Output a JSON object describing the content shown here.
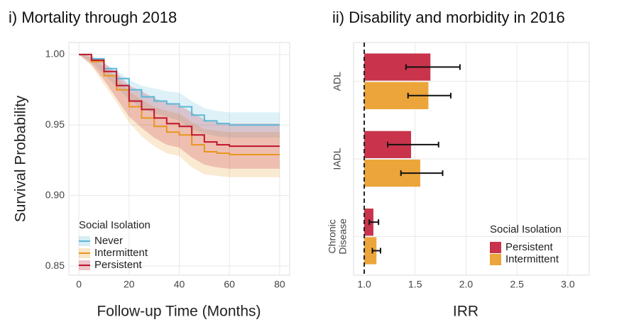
{
  "chart_data": [
    {
      "type": "line",
      "title": "i) Mortality through 2018",
      "xlabel": "Follow-up Time (Months)",
      "ylabel": "Survival Probability",
      "x": [
        0,
        5,
        10,
        15,
        20,
        25,
        30,
        35,
        40,
        45,
        50,
        55,
        60,
        80
      ],
      "series": [
        {
          "name": "Never",
          "color": "#5bb8d6",
          "values": [
            1.0,
            0.997,
            0.99,
            0.983,
            0.975,
            0.97,
            0.967,
            0.965,
            0.963,
            0.957,
            0.953,
            0.951,
            0.95,
            0.95
          ],
          "lower": [
            1.0,
            0.995,
            0.986,
            0.977,
            0.968,
            0.962,
            0.958,
            0.956,
            0.953,
            0.947,
            0.944,
            0.942,
            0.941,
            0.941
          ],
          "upper": [
            1.0,
            0.999,
            0.994,
            0.989,
            0.982,
            0.978,
            0.976,
            0.974,
            0.973,
            0.967,
            0.962,
            0.96,
            0.959,
            0.959
          ]
        },
        {
          "name": "Intermittent",
          "color": "#e8961e",
          "values": [
            1.0,
            0.995,
            0.985,
            0.975,
            0.963,
            0.955,
            0.949,
            0.945,
            0.943,
            0.936,
            0.931,
            0.93,
            0.929,
            0.929
          ],
          "lower": [
            1.0,
            0.992,
            0.979,
            0.966,
            0.952,
            0.942,
            0.935,
            0.93,
            0.928,
            0.92,
            0.915,
            0.914,
            0.913,
            0.913
          ],
          "upper": [
            1.0,
            0.998,
            0.991,
            0.984,
            0.974,
            0.968,
            0.963,
            0.96,
            0.958,
            0.952,
            0.947,
            0.946,
            0.945,
            0.945
          ]
        },
        {
          "name": "Persistent",
          "color": "#c0142d",
          "values": [
            1.0,
            0.996,
            0.988,
            0.978,
            0.967,
            0.961,
            0.955,
            0.951,
            0.949,
            0.943,
            0.938,
            0.936,
            0.935,
            0.935
          ],
          "lower": [
            1.0,
            0.993,
            0.982,
            0.969,
            0.956,
            0.948,
            0.941,
            0.936,
            0.934,
            0.927,
            0.922,
            0.92,
            0.919,
            0.919
          ],
          "upper": [
            1.0,
            0.999,
            0.994,
            0.987,
            0.978,
            0.974,
            0.969,
            0.966,
            0.964,
            0.959,
            0.954,
            0.952,
            0.951,
            0.951
          ]
        }
      ],
      "xlim": [
        -4,
        84
      ],
      "xticks": [
        0,
        20,
        40,
        60,
        80
      ],
      "ylim": [
        0.8435,
        1.0085
      ],
      "yticks": [
        {
          "value": 0.85,
          "label": "0.85"
        },
        {
          "value": 0.9,
          "label": "0.90"
        },
        {
          "value": 0.95,
          "label": "0.95"
        },
        {
          "value": 1.0,
          "label": "1.00"
        }
      ],
      "grid": true,
      "legend_title": "Social Isolation",
      "legend_position": "bottom-left"
    },
    {
      "type": "bar",
      "orientation": "horizontal",
      "title": "ii) Disability and morbidity in 2016",
      "xlabel": "IRR",
      "categories": [
        "ADL",
        "IADL",
        "Chronic Disease"
      ],
      "series": [
        {
          "name": "Persistent",
          "color": "#c9344c",
          "values": [
            1.65,
            1.46,
            1.09
          ],
          "ci_low": [
            1.41,
            1.23,
            1.05
          ],
          "ci_high": [
            1.94,
            1.73,
            1.14
          ]
        },
        {
          "name": "Intermittent",
          "color": "#eca53a",
          "values": [
            1.63,
            1.55,
            1.12
          ],
          "ci_low": [
            1.43,
            1.36,
            1.08
          ],
          "ci_high": [
            1.85,
            1.77,
            1.16
          ]
        }
      ],
      "reference_x": 1.0,
      "xlim": [
        0.895,
        3.21
      ],
      "xticks": [
        {
          "value": 1.0,
          "label": "1.0"
        },
        {
          "value": 1.5,
          "label": "1.5"
        },
        {
          "value": 2.0,
          "label": "2.0"
        },
        {
          "value": 2.5,
          "label": "2.5"
        },
        {
          "value": 3.0,
          "label": "3.0"
        }
      ],
      "grid": true,
      "legend_title": "Social Isolation",
      "legend_position": "bottom-right"
    }
  ]
}
